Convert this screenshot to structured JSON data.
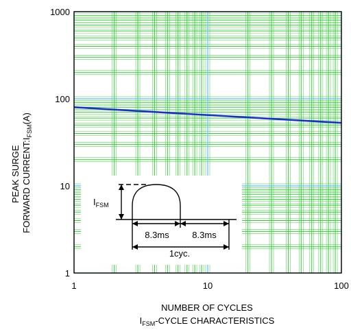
{
  "chart_data": {
    "type": "line",
    "x_scale": "log",
    "y_scale": "log",
    "xlim": [
      1,
      100
    ],
    "ylim": [
      1,
      1000
    ],
    "x_ticks": [
      1,
      10,
      100
    ],
    "x_tick_labels": [
      "1",
      "10",
      "100"
    ],
    "y_ticks": [
      1,
      10,
      100,
      1000
    ],
    "y_tick_labels": [
      "1",
      "10",
      "100",
      "1000"
    ],
    "grid": true,
    "line_color": "#1a2fd0",
    "grid_color": "#33cc33",
    "series": [
      {
        "x": [
          1,
          10,
          100
        ],
        "y": [
          80,
          65,
          53
        ]
      }
    ],
    "ylabel": {
      "line1": "PEAK SURGE",
      "line2_prefix": "FORWARD CURRENT:I",
      "line2_sub": "FSM",
      "line2_suffix": "(A)"
    },
    "xlabel": "NUMBER OF CYCLES",
    "caption": {
      "prefix": "I",
      "sub": "FSM",
      "suffix": "-CYCLE CHARACTERISTICS"
    },
    "inset": {
      "ifsm_main": "I",
      "ifsm_sub": "FSM",
      "t_left": "8.3ms",
      "t_right": "8.3ms",
      "cycle": "1cyc."
    }
  }
}
